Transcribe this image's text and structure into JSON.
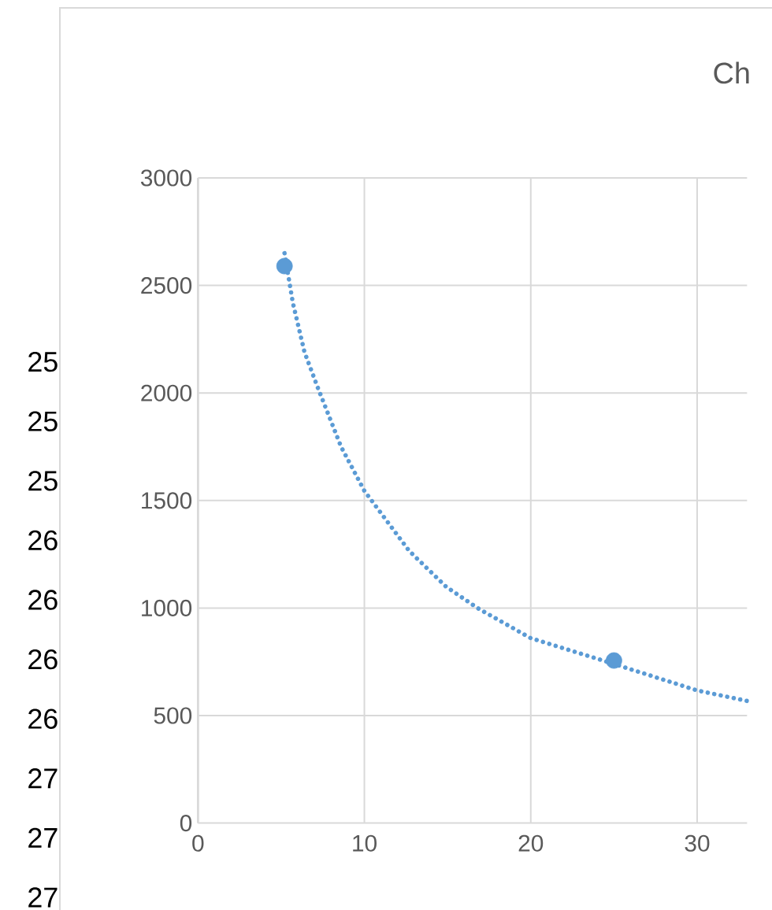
{
  "chart_data": {
    "type": "scatter",
    "title": "Ch",
    "xlim": [
      0,
      33
    ],
    "ylim": [
      0,
      3000
    ],
    "xticks": [
      0,
      10,
      20,
      30
    ],
    "yticks": [
      0,
      500,
      1000,
      1500,
      2000,
      2500,
      3000
    ],
    "grid": true,
    "series": [
      {
        "color": "#5b9bd5",
        "marker": "circle",
        "x": [
          5.2,
          25
        ],
        "values": [
          2590,
          756
        ]
      },
      {
        "type": "line",
        "color": "#5b9bd5",
        "marker": "none",
        "line_style": "dotted",
        "x": [
          5.2,
          5.7,
          6.4,
          7.2,
          8.6,
          10,
          12.7,
          14.9,
          16.8,
          20,
          25,
          30,
          33
        ],
        "values": [
          2650,
          2420,
          2190,
          2025,
          1750,
          1545,
          1265,
          1100,
          1000,
          860,
          740,
          617,
          568
        ]
      }
    ],
    "annotations": [
      "25",
      "25",
      "25",
      "26",
      "26",
      "26",
      "26",
      "27",
      "27",
      "27"
    ]
  }
}
